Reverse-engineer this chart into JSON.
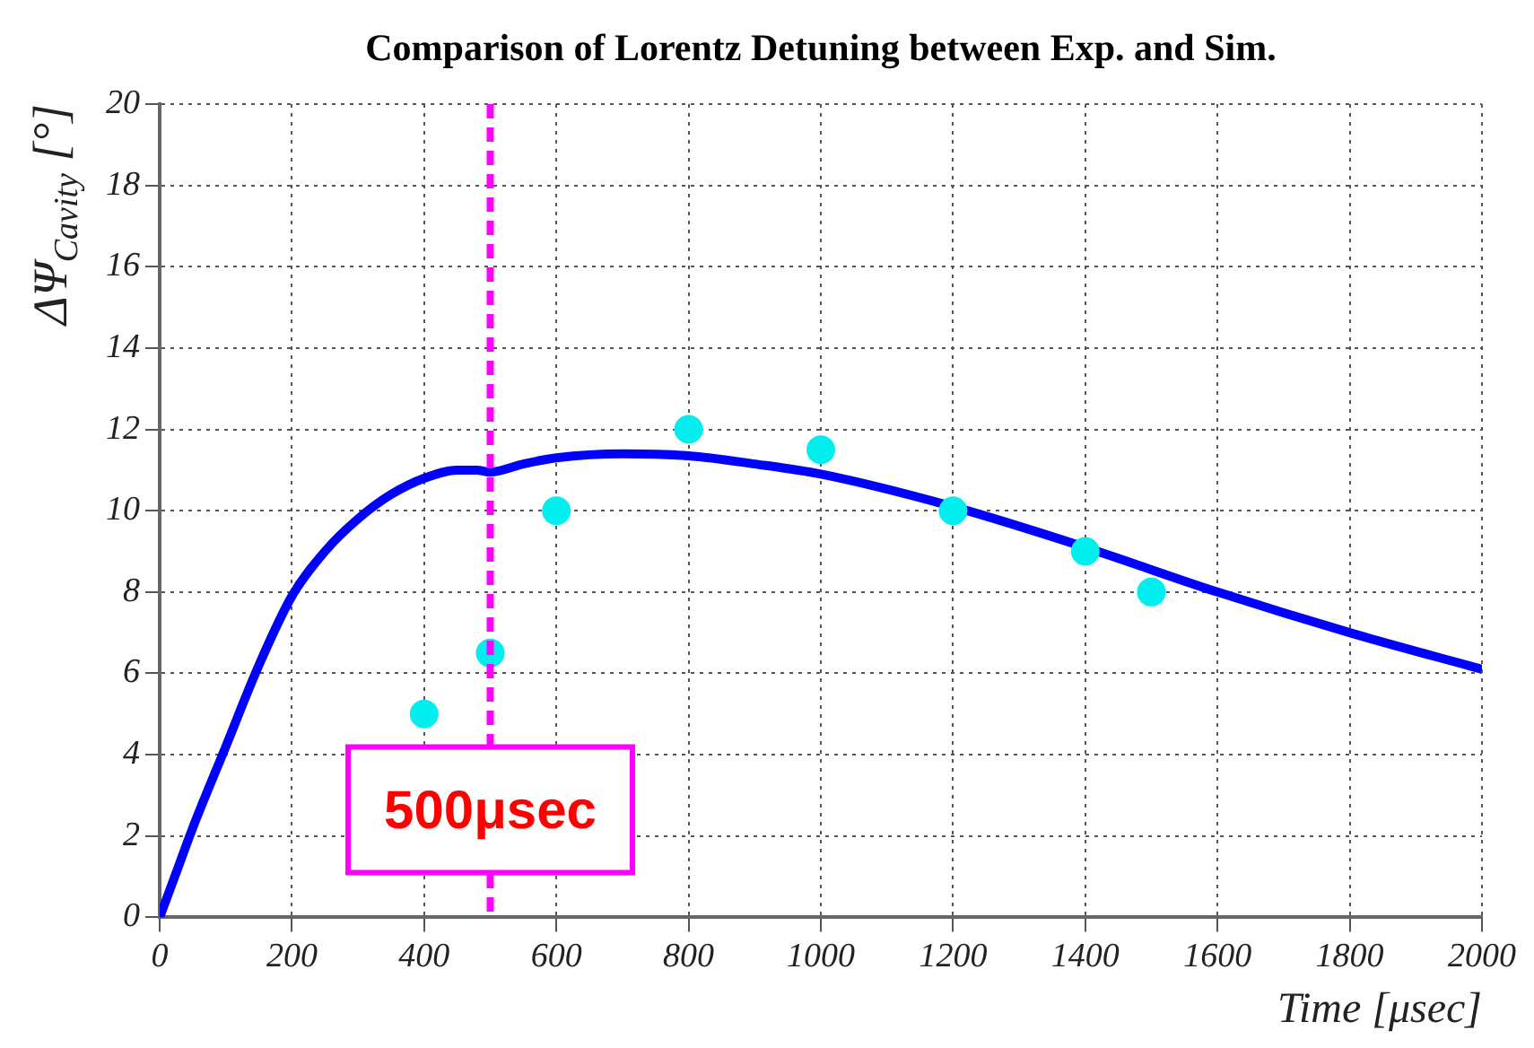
{
  "chart_data": {
    "type": "line",
    "title": "Comparison of Lorentz Detuning between Exp. and Sim.",
    "xlabel": "Time [μsec]",
    "ylabel": "ΔΨ$_{Cavity}$ [°]",
    "xlim": [
      0,
      2000
    ],
    "xticks": [
      0,
      200,
      400,
      600,
      800,
      1000,
      1200,
      1400,
      1600,
      1800,
      2000
    ],
    "ylim": [
      0,
      20
    ],
    "yticks": [
      0,
      2,
      4,
      6,
      8,
      10,
      12,
      14,
      16,
      18,
      20
    ],
    "grid": true,
    "legend": false,
    "series": [
      {
        "marker": "none",
        "color": "#0000ff",
        "x": [
          0,
          25,
          50,
          100,
          150,
          200,
          250,
          300,
          350,
          400,
          450,
          480,
          500,
          550,
          600,
          700,
          800,
          900,
          1000,
          1200,
          1400,
          1600,
          1800,
          2000
        ],
        "values": [
          0,
          1.1,
          2.2,
          4.2,
          6.2,
          7.9,
          9.0,
          9.8,
          10.4,
          10.8,
          11.0,
          11.0,
          10.95,
          11.15,
          11.3,
          11.4,
          11.35,
          11.15,
          10.9,
          10.1,
          9.1,
          8.0,
          7.0,
          6.1
        ]
      },
      {
        "type": "scatter",
        "marker": "circle",
        "color": "#00eeee",
        "x": [
          400,
          500,
          600,
          800,
          1000,
          1200,
          1400,
          1500
        ],
        "values": [
          5,
          6.5,
          10,
          12,
          11.5,
          10,
          9,
          8
        ]
      }
    ],
    "ref_lines": [
      {
        "axis": "x",
        "value": 500,
        "label": "500μsec",
        "color": "#ff00ff",
        "line_style": "dashed"
      }
    ]
  }
}
